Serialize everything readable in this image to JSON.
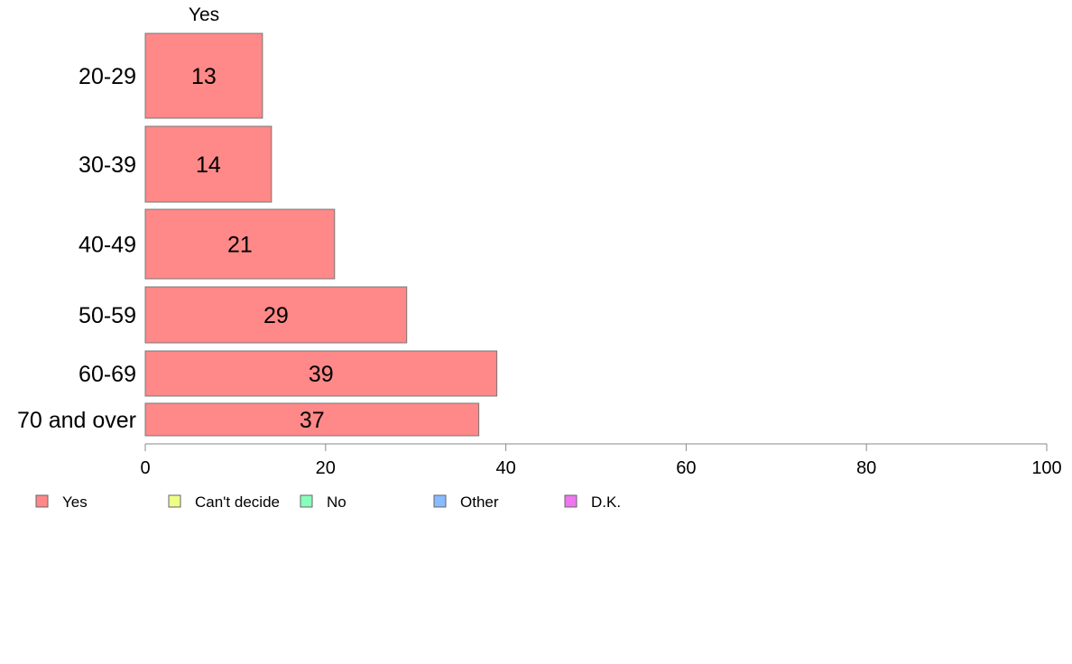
{
  "chart_data": {
    "type": "bar",
    "orientation": "horizontal",
    "column_header": "Yes",
    "categories": [
      "20-29",
      "30-39",
      "40-49",
      "50-59",
      "60-69",
      "70 and over"
    ],
    "series": [
      {
        "name": "Yes",
        "values": [
          13,
          14,
          21,
          29,
          39,
          37
        ]
      }
    ],
    "data_labels": [
      "13",
      "14",
      "21",
      "29",
      "39",
      "37"
    ],
    "xlim": [
      0,
      100
    ],
    "x_ticks": [
      0,
      20,
      40,
      60,
      80,
      100
    ],
    "x_tick_labels": [
      "0",
      "20",
      "40",
      "60",
      "80",
      "100"
    ],
    "grid": false,
    "legend_position": "bottom-left",
    "legend": [
      {
        "label": "Yes",
        "color": "#ff8888"
      },
      {
        "label": "Can't decide",
        "color": "#eeff88"
      },
      {
        "label": "No",
        "color": "#88ffbb"
      },
      {
        "label": "Other",
        "color": "#88bbff"
      },
      {
        "label": "D.K.",
        "color": "#ee77ee"
      }
    ],
    "colors": {
      "bar_fill": "#ff8888",
      "bar_stroke": "#777777",
      "axis": "#888888"
    }
  }
}
